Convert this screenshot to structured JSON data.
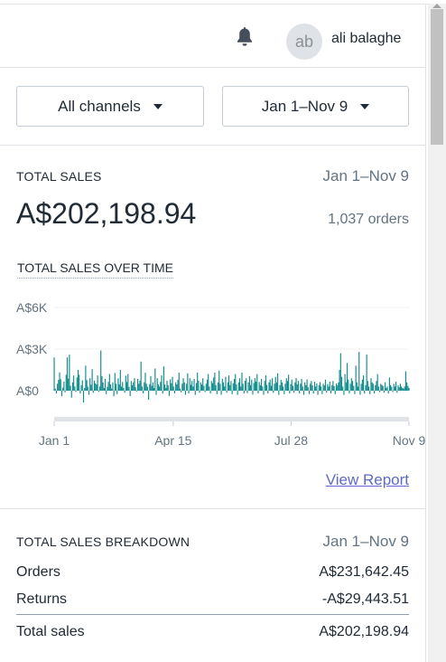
{
  "header": {
    "avatar_initials": "ab",
    "username": "ali balaghe"
  },
  "filters": {
    "channel_label": "All channels",
    "date_label": "Jan 1–Nov 9"
  },
  "total_sales": {
    "title": "TOTAL SALES",
    "date_range": "Jan 1–Nov 9",
    "amount": "A$202,198.94",
    "orders": "1,037 orders",
    "chart_title": "TOTAL SALES OVER TIME",
    "view_report": "View Report"
  },
  "chart_data": {
    "type": "bar",
    "title": "TOTAL SALES OVER TIME",
    "y_ticks": [
      "A$6K",
      "A$3K",
      "A$0"
    ],
    "y_tick_values": [
      6000,
      3000,
      0
    ],
    "ylim": [
      -1200,
      6000
    ],
    "x_ticks": [
      "Jan 1",
      "Apr 15",
      "Jul 28",
      "Nov 9"
    ],
    "x_tick_days": [
      0,
      105,
      209,
      313
    ],
    "grid": true,
    "color": "#108a8a",
    "daily_values": [
      2400,
      150,
      -200,
      500,
      780,
      1320,
      830,
      -400,
      220,
      650,
      -120,
      1150,
      2400,
      870,
      2600,
      350,
      -500,
      600,
      1100,
      300,
      -80,
      950,
      1500,
      1150,
      -200,
      400,
      750,
      -850,
      200,
      1800,
      760,
      300,
      -300,
      900,
      430,
      1550,
      -150,
      720,
      530,
      450,
      1100,
      -80,
      300,
      2900,
      1050,
      600,
      200,
      850,
      -250,
      280,
      630,
      1200,
      450,
      150,
      600,
      -400,
      1280,
      500,
      -250,
      890,
      450,
      1500,
      300,
      630,
      200,
      -150,
      1080,
      630,
      1200,
      280,
      -400,
      700,
      400,
      600,
      900,
      250,
      -60,
      850,
      500,
      720,
      2100,
      300,
      -200,
      600,
      1300,
      500,
      280,
      -650,
      470,
      1050,
      350,
      600,
      200,
      1600,
      -300,
      900,
      450,
      300,
      640,
      1100,
      -200,
      1750,
      450,
      200,
      720,
      400,
      -380,
      820,
      540,
      1000,
      300,
      -200,
      600,
      450,
      780,
      1300,
      150,
      -120,
      500,
      900,
      600,
      -300,
      500,
      1250,
      -200,
      900,
      420,
      700,
      300,
      850,
      -300,
      550,
      1300,
      720,
      -150,
      600,
      450,
      900,
      350,
      -100,
      500,
      800,
      1200,
      300,
      -200,
      700,
      540,
      950,
      1300,
      400,
      -250,
      600,
      1450,
      500,
      -300,
      860,
      600,
      300,
      1000,
      -150,
      600,
      1100,
      400,
      700,
      -250,
      540,
      850,
      1200,
      450,
      -300,
      600,
      900,
      300,
      1300,
      500,
      -200,
      720,
      900,
      -180,
      600,
      1050,
      400,
      800,
      -280,
      550,
      900,
      650,
      1200,
      -200,
      620,
      400,
      850,
      300,
      -300,
      700,
      1100,
      420,
      -200,
      600,
      800,
      350,
      900,
      -150,
      500,
      1000,
      600,
      1250,
      -300,
      400,
      780,
      600,
      300,
      -250,
      500,
      900,
      700,
      1150,
      -200,
      480,
      800,
      350,
      -150,
      600,
      920,
      450,
      700,
      -200,
      500,
      850,
      300,
      -300,
      600,
      400,
      820,
      250,
      -250,
      500,
      700,
      380,
      -200,
      650,
      300,
      520,
      -300,
      400,
      620,
      300,
      -250,
      500,
      380,
      800,
      -150,
      480,
      300,
      650,
      -200,
      400,
      700,
      320,
      -250,
      520,
      380,
      600,
      1500,
      2700,
      1000,
      300,
      -300,
      1200,
      600,
      2000,
      800,
      -200,
      500,
      900,
      700,
      350,
      -250,
      1800,
      600,
      300,
      2800,
      -300,
      500,
      800,
      1100,
      -200,
      400,
      2600,
      700,
      300,
      -250,
      900,
      600,
      500,
      -200,
      400,
      700,
      1200,
      300,
      -100,
      500,
      420,
      350,
      -150,
      600,
      200,
      300,
      -200,
      950,
      400,
      280,
      -100,
      500,
      300,
      650,
      -150,
      400,
      250,
      500,
      300,
      200,
      150,
      300,
      1400,
      600,
      350,
      200
    ]
  },
  "breakdown": {
    "title": "TOTAL SALES BREAKDOWN",
    "date_range": "Jan 1–Nov 9",
    "rows": [
      {
        "label": "Orders",
        "value": "A$231,642.45"
      },
      {
        "label": "Returns",
        "value": "-A$29,443.51"
      }
    ],
    "total": {
      "label": "Total sales",
      "value": "A$202,198.94"
    }
  }
}
